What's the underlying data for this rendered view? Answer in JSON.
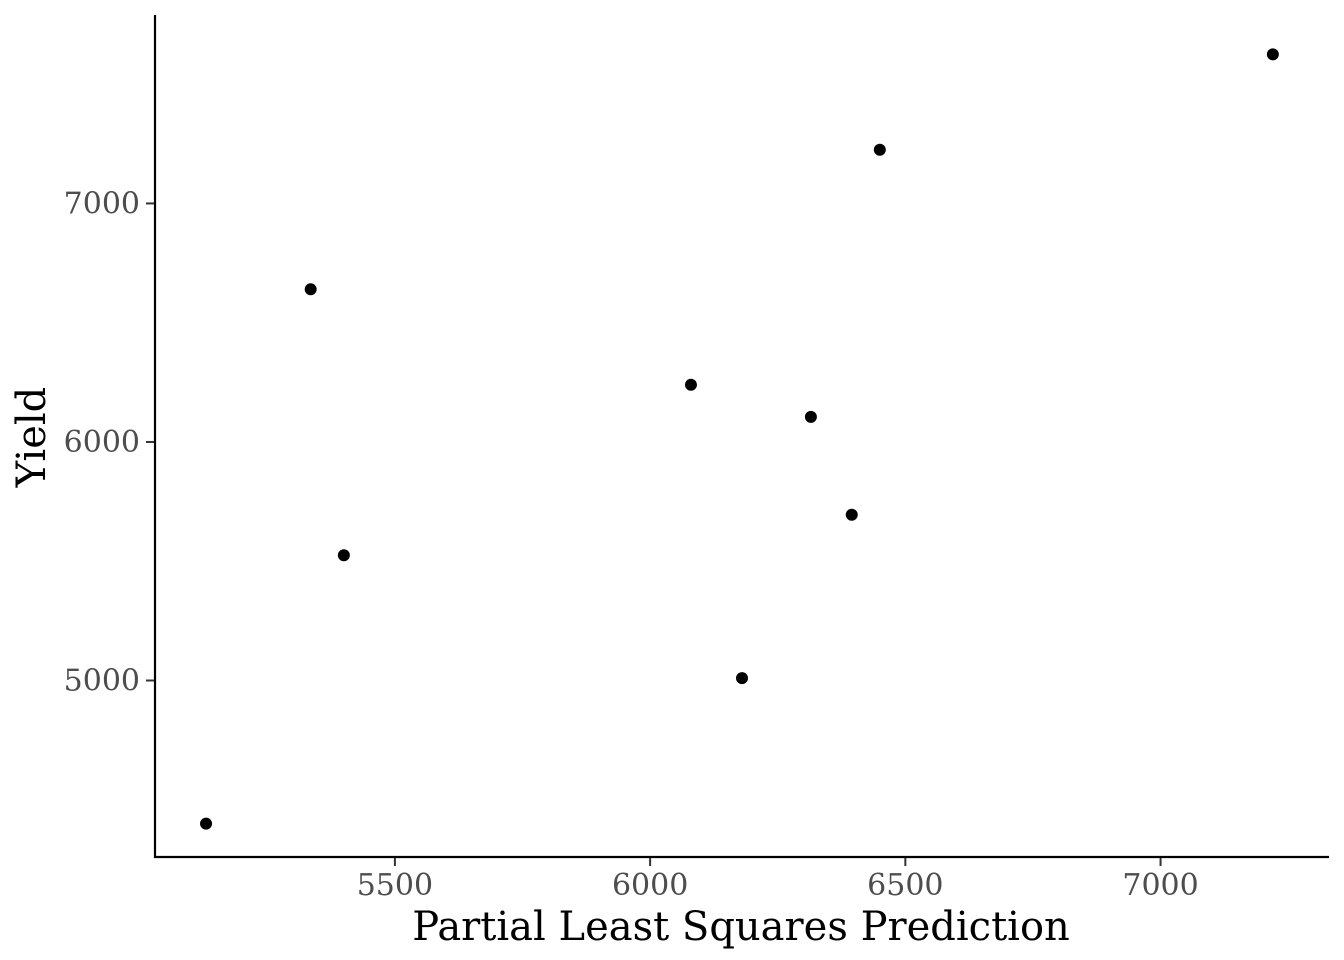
{
  "chart_data": {
    "type": "scatter",
    "title": "",
    "xlabel": "Partial Least Squares Prediction",
    "ylabel": "Yield",
    "xlim": [
      5030,
      7330
    ],
    "ylim": [
      4260,
      7790
    ],
    "x_ticks": [
      5500,
      6000,
      6500,
      7000
    ],
    "y_ticks": [
      5000,
      6000,
      7000
    ],
    "x_tick_labels": [
      "5500",
      "6000",
      "6500",
      "7000"
    ],
    "y_tick_labels": [
      "5000",
      "6000",
      "7000"
    ],
    "grid": false,
    "legend": "none",
    "series": [
      {
        "points": [
          {
            "x": 5130,
            "y": 4400
          },
          {
            "x": 5335,
            "y": 6640
          },
          {
            "x": 5400,
            "y": 5525
          },
          {
            "x": 6080,
            "y": 6240
          },
          {
            "x": 6180,
            "y": 5010
          },
          {
            "x": 6315,
            "y": 6105
          },
          {
            "x": 6395,
            "y": 5695
          },
          {
            "x": 6450,
            "y": 7225
          },
          {
            "x": 7220,
            "y": 7625
          }
        ]
      }
    ],
    "colors": {
      "points": "#000000",
      "axis": "#000000",
      "tick_labels": "#4d4d4d"
    }
  }
}
